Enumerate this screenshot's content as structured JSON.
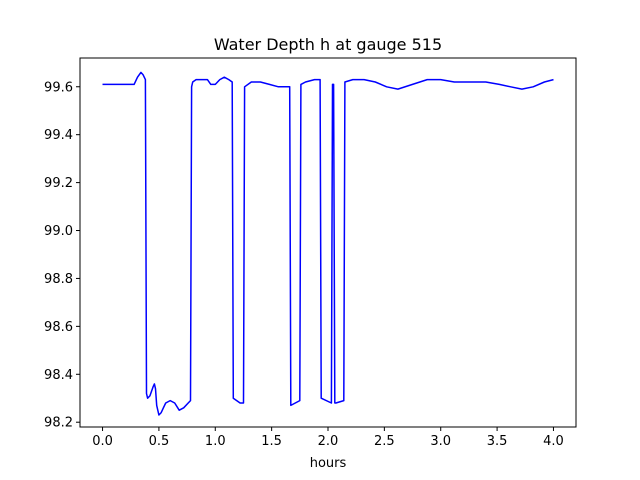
{
  "chart_data": {
    "type": "line",
    "title": "Water Depth h at gauge 515",
    "xlabel": "hours",
    "ylabel": "",
    "xlim": [
      -0.2,
      4.2
    ],
    "ylim": [
      98.18,
      99.72
    ],
    "x_ticks": [
      0.0,
      0.5,
      1.0,
      1.5,
      2.0,
      2.5,
      3.0,
      3.5,
      4.0
    ],
    "x_tick_labels": [
      "0.0",
      "0.5",
      "1.0",
      "1.5",
      "2.0",
      "2.5",
      "3.0",
      "3.5",
      "4.0"
    ],
    "y_ticks": [
      98.2,
      98.4,
      98.6,
      98.8,
      99.0,
      99.2,
      99.4,
      99.6
    ],
    "y_tick_labels": [
      "98.2",
      "98.4",
      "98.6",
      "98.8",
      "99.0",
      "99.2",
      "99.4",
      "99.6"
    ],
    "grid": false,
    "legend": "none",
    "series": [
      {
        "color": "#0000ff",
        "x": [
          0.0,
          0.1,
          0.2,
          0.28,
          0.31,
          0.34,
          0.36,
          0.38,
          0.39,
          0.4,
          0.42,
          0.45,
          0.46,
          0.47,
          0.48,
          0.5,
          0.52,
          0.54,
          0.56,
          0.6,
          0.64,
          0.68,
          0.72,
          0.76,
          0.78,
          0.79,
          0.8,
          0.83,
          0.88,
          0.93,
          0.96,
          1.0,
          1.04,
          1.08,
          1.12,
          1.15,
          1.16,
          1.22,
          1.25,
          1.26,
          1.32,
          1.4,
          1.48,
          1.56,
          1.6,
          1.66,
          1.67,
          1.75,
          1.76,
          1.8,
          1.88,
          1.93,
          1.94,
          2.03,
          2.04,
          2.05,
          2.06,
          2.07,
          2.14,
          2.15,
          2.22,
          2.32,
          2.42,
          2.52,
          2.62,
          2.75,
          2.88,
          3.0,
          3.12,
          3.25,
          3.4,
          3.52,
          3.62,
          3.72,
          3.82,
          3.92,
          4.0
        ],
        "y": [
          99.61,
          99.61,
          99.61,
          99.61,
          99.64,
          99.66,
          99.65,
          99.63,
          98.32,
          98.3,
          98.31,
          98.35,
          98.36,
          98.34,
          98.27,
          98.23,
          98.24,
          98.26,
          98.28,
          98.29,
          98.28,
          98.25,
          98.26,
          98.28,
          98.29,
          99.6,
          99.62,
          99.63,
          99.63,
          99.63,
          99.61,
          99.61,
          99.63,
          99.64,
          99.63,
          99.62,
          98.3,
          98.28,
          98.28,
          99.6,
          99.62,
          99.62,
          99.61,
          99.6,
          99.6,
          99.6,
          98.27,
          98.29,
          99.61,
          99.62,
          99.63,
          99.63,
          98.3,
          98.28,
          99.61,
          99.61,
          98.28,
          98.28,
          98.29,
          99.62,
          99.63,
          99.63,
          99.62,
          99.6,
          99.59,
          99.61,
          99.63,
          99.63,
          99.62,
          99.62,
          99.62,
          99.61,
          99.6,
          99.59,
          99.6,
          99.62,
          99.63
        ]
      }
    ]
  }
}
